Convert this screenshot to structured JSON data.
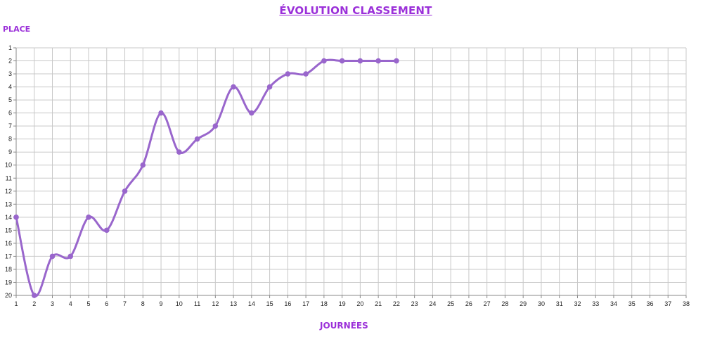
{
  "chart_data": {
    "type": "line",
    "title": "ÉVOLUTION CLASSEMENT",
    "ylabel": "PLACE",
    "xlabel": "JOURNÉES",
    "xlim": [
      1,
      38
    ],
    "ylim": [
      1,
      20
    ],
    "y_inverted": true,
    "grid": true,
    "x_ticks": [
      1,
      2,
      3,
      4,
      5,
      6,
      7,
      8,
      9,
      10,
      11,
      12,
      13,
      14,
      15,
      16,
      17,
      18,
      19,
      20,
      21,
      22,
      23,
      24,
      25,
      26,
      27,
      28,
      29,
      30,
      31,
      32,
      33,
      34,
      35,
      36,
      37,
      38
    ],
    "y_ticks": [
      1,
      2,
      3,
      4,
      5,
      6,
      7,
      8,
      9,
      10,
      11,
      12,
      13,
      14,
      15,
      16,
      17,
      18,
      19,
      20
    ],
    "series": [
      {
        "color": "#9966cc",
        "x": [
          1,
          2,
          3,
          4,
          5,
          6,
          7,
          8,
          9,
          10,
          11,
          12,
          13,
          14,
          15,
          16,
          17,
          18,
          19,
          20,
          21,
          22
        ],
        "y": [
          14,
          20,
          17,
          17,
          14,
          15,
          12,
          10,
          6,
          9,
          8,
          7,
          4,
          6,
          4,
          3,
          3,
          2,
          2,
          2,
          2,
          2
        ]
      }
    ]
  },
  "colors": {
    "title": "#9b30d9",
    "line": "#9966cc",
    "grid": "#c8c8c8"
  }
}
